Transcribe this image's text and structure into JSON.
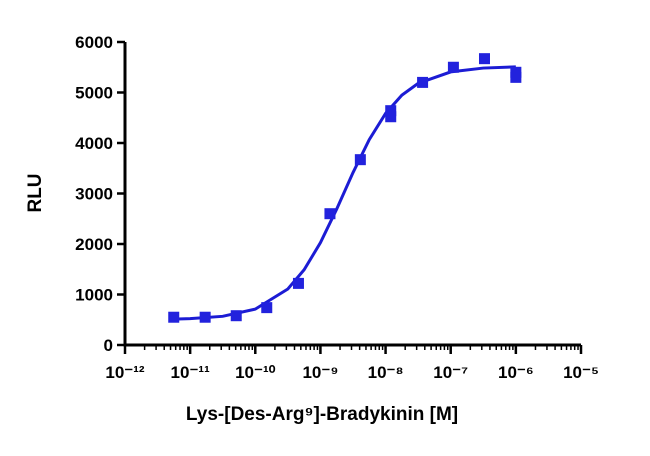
{
  "chart_data": {
    "type": "scatter",
    "x_label": "Lys-[Des-Arg⁹]-Bradykinin [M]",
    "y_label": "RLU",
    "x_log": true,
    "minor_ticks": true,
    "xlim": [
      1e-12,
      1e-05
    ],
    "xticks": [
      {
        "value": 1e-12,
        "label": "10⁻¹²"
      },
      {
        "value": 1e-11,
        "label": "10⁻¹¹"
      },
      {
        "value": 1e-10,
        "label": "10⁻¹⁰"
      },
      {
        "value": 1e-09,
        "label": "10⁻⁹"
      },
      {
        "value": 1e-08,
        "label": "10⁻⁸"
      },
      {
        "value": 1e-07,
        "label": "10⁻⁷"
      },
      {
        "value": 1e-06,
        "label": "10⁻⁶"
      },
      {
        "value": 1e-05,
        "label": "10⁻⁵"
      }
    ],
    "ylim": [
      0,
      6000
    ],
    "yticks": [
      0,
      1000,
      2000,
      3000,
      4000,
      5000,
      6000
    ],
    "series": [
      {
        "type": "scatter",
        "color": "#2222dd",
        "x": [
          5.6e-12,
          1.7e-11,
          5.1e-11,
          1.5e-10,
          4.6e-10,
          1.4e-09,
          4.1e-09,
          1.2e-08,
          1.2e-08,
          3.7e-08,
          1.1e-07,
          3.3e-07,
          1e-06,
          1e-06
        ],
        "values": [
          550,
          550,
          580,
          740,
          1220,
          2600,
          3670,
          4640,
          4520,
          5200,
          5500,
          5670,
          5400,
          5300
        ]
      },
      {
        "type": "line",
        "color": "#1c1cd4",
        "x": [
          5.6e-12,
          1e-11,
          3.16e-11,
          1e-10,
          3.16e-10,
          5.62e-10,
          1e-09,
          1.78e-09,
          3.16e-09,
          5.62e-09,
          1e-08,
          1.78e-08,
          3.16e-08,
          1e-07,
          3.16e-07,
          1e-06
        ],
        "values": [
          512,
          522,
          568,
          710,
          1109,
          1490,
          2026,
          2694,
          3412,
          4068,
          4585,
          4947,
          5181,
          5408,
          5484,
          5508
        ]
      }
    ]
  }
}
